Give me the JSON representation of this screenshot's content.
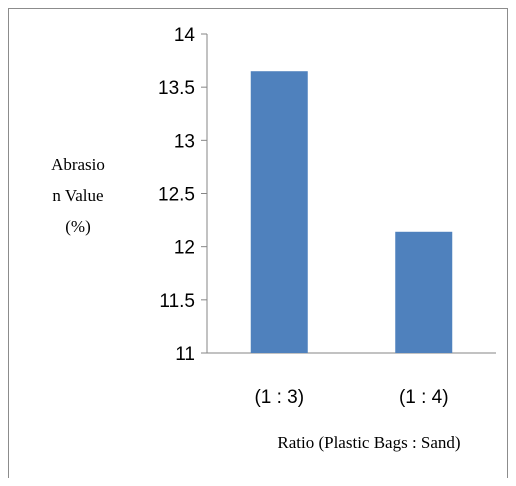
{
  "chart_data": {
    "type": "bar",
    "categories": [
      "(1 : 3)",
      "(1 : 4)"
    ],
    "values": [
      13.65,
      12.14
    ],
    "title": "",
    "xlabel": "Ratio (Plastic Bags : Sand)",
    "ylabel_lines": [
      "Abrasio",
      "n Value",
      "(%)"
    ],
    "ylim": [
      11,
      14
    ],
    "yticks": [
      {
        "value": 14,
        "label": "14"
      },
      {
        "value": 13.5,
        "label": "13.5"
      },
      {
        "value": 13,
        "label": "13"
      },
      {
        "value": 12.5,
        "label": "12.5"
      },
      {
        "value": 12,
        "label": "12"
      },
      {
        "value": 11.5,
        "label": "11.5"
      },
      {
        "value": 11,
        "label": "11"
      }
    ],
    "grid": false,
    "legend": "none",
    "bar_color": "#4f81bd",
    "axis_color": "#868686"
  }
}
